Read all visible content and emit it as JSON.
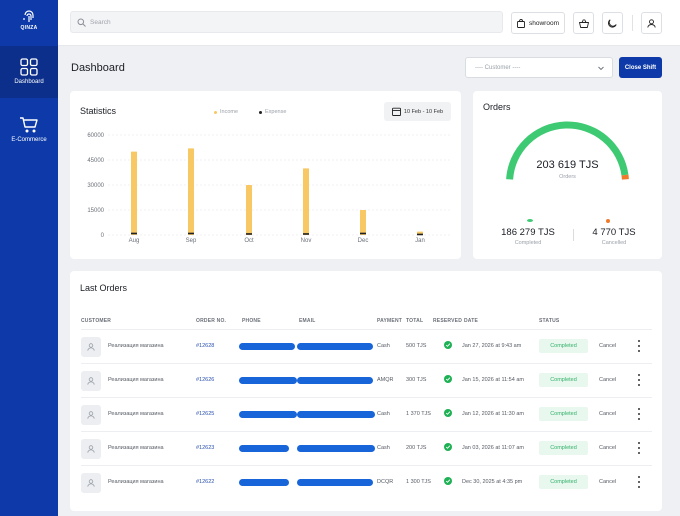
{
  "brand": {
    "logo_text": "QINZA"
  },
  "sidebar": {
    "items": [
      {
        "label": "Dashboard",
        "icon": "grid-icon"
      },
      {
        "label": "E-Commerce",
        "icon": "cart-icon"
      }
    ]
  },
  "topbar": {
    "search_placeholder": "Search",
    "showroom_label": "showroom"
  },
  "page": {
    "title": "Dashboard",
    "customer_select": "---- Customer ----",
    "close_shift": "Close Shift"
  },
  "statistics": {
    "title": "Statistics",
    "legend_income": "Income",
    "legend_expense": "Expense",
    "date_range": "10 Feb - 10 Feb"
  },
  "chart_data": {
    "type": "bar",
    "categories": [
      "Aug",
      "Sep",
      "Oct",
      "Nov",
      "Dec",
      "Jan"
    ],
    "series": [
      {
        "name": "Income",
        "values": [
          50000,
          52000,
          30000,
          40000,
          15000,
          2000
        ]
      },
      {
        "name": "Expense",
        "values": [
          800,
          800,
          500,
          500,
          800,
          200
        ]
      }
    ],
    "yticks": [
      "60000",
      "45000",
      "30000",
      "15000",
      "0"
    ],
    "ylim": [
      0,
      60000
    ],
    "colors": {
      "Income": "#f7c864",
      "Expense": "#222222"
    },
    "legend": "top"
  },
  "orders": {
    "title": "Orders",
    "total": "203 619 TJS",
    "total_label": "Orders",
    "completed_value": "186 279 TJS",
    "completed_label": "Completed",
    "cancelled_value": "4 770 TJS",
    "cancelled_label": "Cancelled",
    "completed_fraction": 0.975,
    "colors": {
      "completed": "#3dca72",
      "cancelled": "#f07a2c"
    }
  },
  "last_orders": {
    "title": "Last Orders",
    "columns": [
      "CUSTOMER",
      "ORDER NO.",
      "PHONE",
      "EMAIL",
      "PAYMENT",
      "TOTAL",
      "RESERVED",
      "DATE",
      "STATUS"
    ],
    "rows": [
      {
        "customer": "Реализация магазина",
        "order_no": "#12628",
        "payment": "Cash",
        "total": "500 TJS",
        "date": "Jan 27, 2026 at 9:43 am",
        "status": "Completed",
        "action": "Cancel"
      },
      {
        "customer": "Реализация магазина",
        "order_no": "#12626",
        "payment": "AMQR",
        "total": "300 TJS",
        "date": "Jan 15, 2026 at 11:54 am",
        "status": "Completed",
        "action": "Cancel"
      },
      {
        "customer": "Реализация магазина",
        "order_no": "#12625",
        "payment": "Cash",
        "total": "1 370 TJS",
        "date": "Jan 12, 2026 at 11:30 am",
        "status": "Completed",
        "action": "Cancel"
      },
      {
        "customer": "Реализация магазина",
        "order_no": "#12623",
        "payment": "Cash",
        "total": "200 TJS",
        "date": "Jan 03, 2026 at 11:07 am",
        "status": "Completed",
        "action": "Cancel"
      },
      {
        "customer": "Реализация магазина",
        "order_no": "#12622",
        "payment": "DCQR",
        "total": "1 300 TJS",
        "date": "Dec 30, 2025 at 4:35 pm",
        "status": "Completed",
        "action": "Cancel"
      }
    ]
  }
}
